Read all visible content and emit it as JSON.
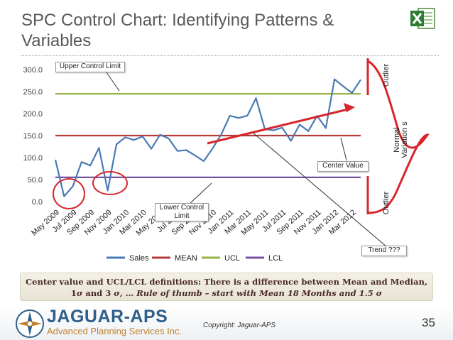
{
  "slide": {
    "title": "SPC Control Chart: Identifying Patterns & Variables",
    "page_number": "35",
    "copyright": "Copyright: Jaguar-APS"
  },
  "logo": {
    "name": "JAGUAR-APS",
    "tagline": "Advanced Planning Services Inc.",
    "icon": "compass-logo-icon",
    "excel_icon": "excel-icon"
  },
  "annotations": {
    "upper_control_limit": "Upper Control Limit",
    "lower_control_limit": "Lower Control Limit",
    "center_value": "Center Value",
    "trend": "Trend ???",
    "outlier_top": "Outlier",
    "outlier_bottom": "Outlier",
    "normal_variation": "Normal Variation s"
  },
  "definition": {
    "line1": "Center value and UCL/LCL definitions: There is a difference between Mean and Median,",
    "line2_a": "1",
    "line2_b": " and 3 ",
    "line2_c": ", … Rule of thumb – start with Mean 18 Months and 1.5 ",
    "sigma": "σ"
  },
  "colors": {
    "sales": "#4a7ab4",
    "mean": "#b43a36",
    "ucl": "#96b348",
    "lcl": "#7352a0",
    "annotation_red": "#d7262c",
    "title_text": "#595959"
  },
  "chart_data": {
    "type": "line",
    "x_tick_labels": [
      "May 2009",
      "Jul 2009",
      "Sep 2009",
      "Nov 2009",
      "Jan 2010",
      "Mar 2010",
      "May 2010",
      "Jul 2010",
      "Sep 2010",
      "Nov 2010",
      "Jan 2011",
      "Mar 2011",
      "May 2011",
      "Jul 2011",
      "Sep 2011",
      "Nov 2011",
      "Jan 2012",
      "Mar 2012"
    ],
    "ylim": [
      0,
      300
    ],
    "y_ticks": [
      "0.0",
      "50.0",
      "100.0",
      "150.0",
      "200.0",
      "250.0",
      "300.0"
    ],
    "series": [
      {
        "name": "Sales",
        "values": [
          95,
          12,
          35,
          90,
          82,
          122,
          25,
          130,
          146,
          140,
          148,
          120,
          152,
          143,
          115,
          117,
          105,
          92,
          120,
          152,
          195,
          190,
          195,
          235,
          165,
          162,
          168,
          138,
          175,
          160,
          195,
          167,
          278,
          262,
          247,
          277
        ]
      },
      {
        "name": "MEAN",
        "values": [
          150,
          150
        ]
      },
      {
        "name": "UCL",
        "values": [
          245,
          245
        ]
      },
      {
        "name": "LCL",
        "values": [
          55,
          55
        ]
      }
    ],
    "legend_position": "bottom",
    "grid": false
  }
}
